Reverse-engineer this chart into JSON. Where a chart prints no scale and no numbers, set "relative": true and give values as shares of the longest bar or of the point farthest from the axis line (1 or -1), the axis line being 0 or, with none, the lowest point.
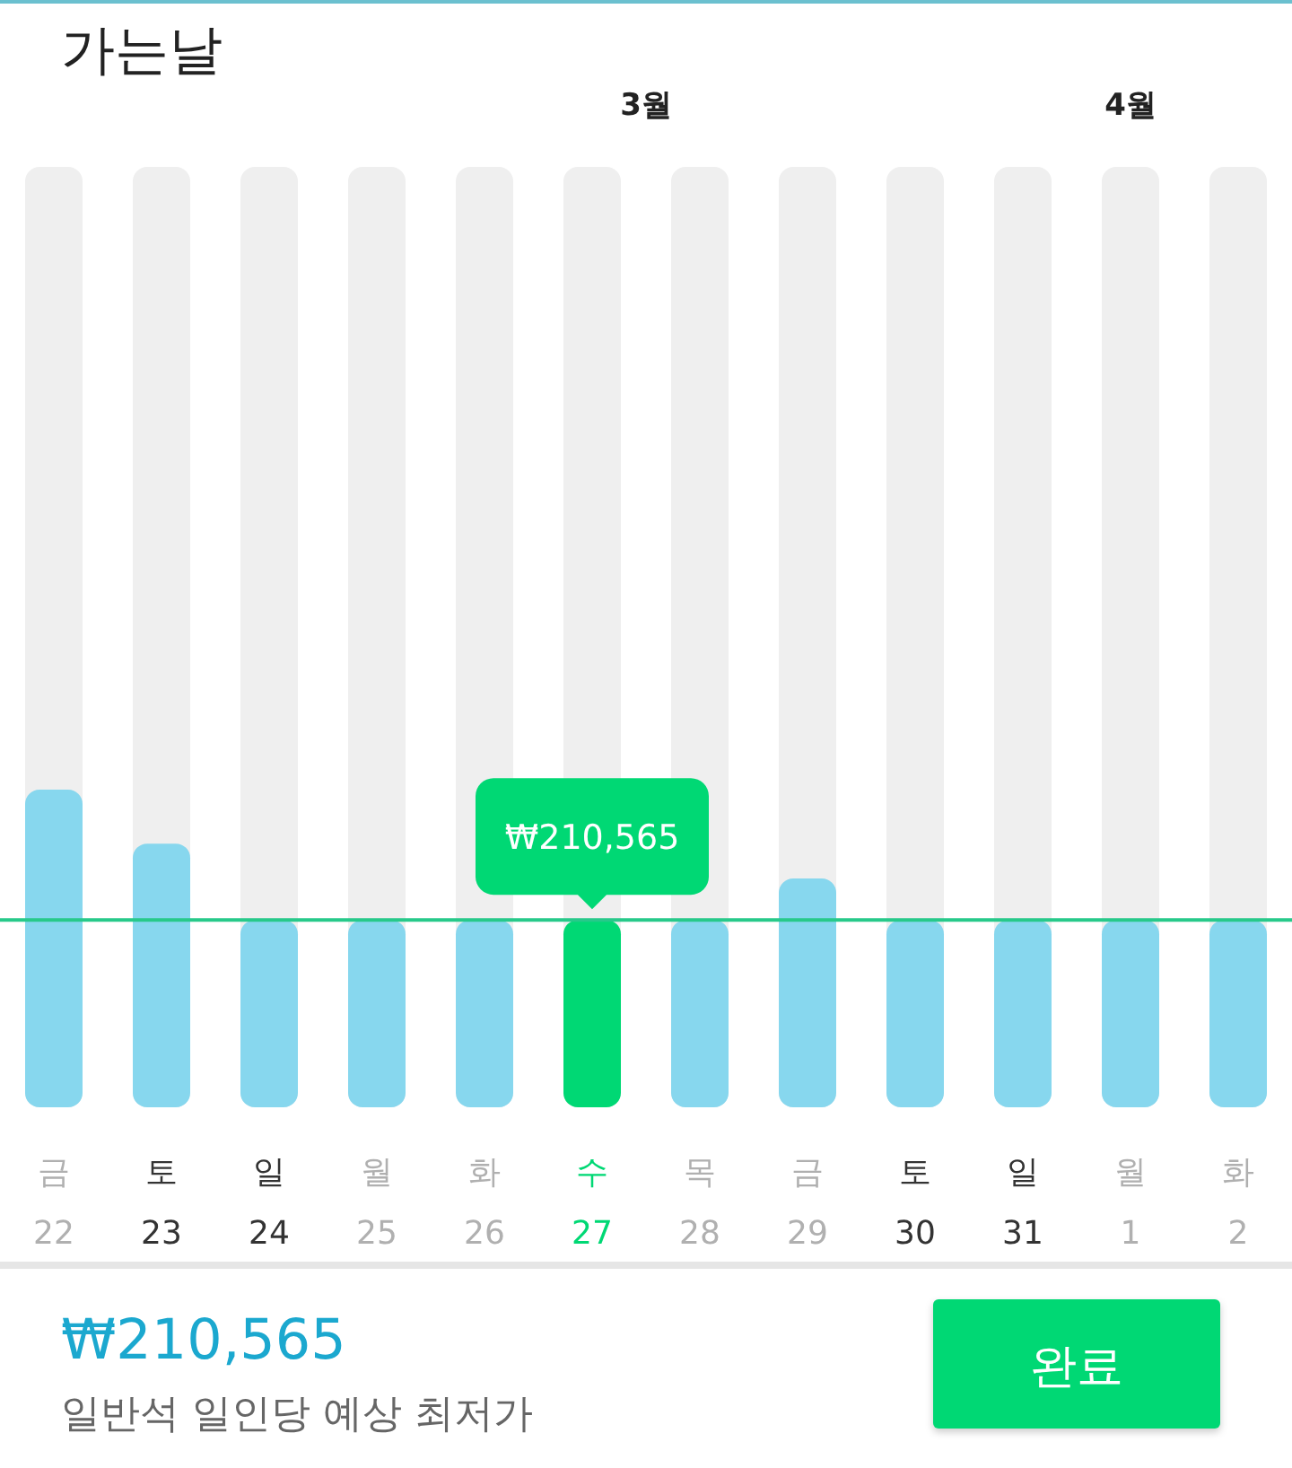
{
  "chart_data": {
    "type": "bar",
    "title": "가는날",
    "categories": [
      "금\n22",
      "토\n23",
      "일\n24",
      "월\n25",
      "화\n26",
      "수\n27",
      "목\n28",
      "금\n29",
      "토\n30",
      "일\n31",
      "월\n1",
      "화\n2"
    ],
    "values": [
      1,
      0.83,
      0.59,
      0.59,
      0.59,
      0.59,
      0.59,
      0.72,
      0.59,
      0.59,
      0.59,
      0.59
    ],
    "colors": [
      "#87d7ee",
      "#87d7ee",
      "#87d7ee",
      "#87d7ee",
      "#87d7ee",
      "#00d874",
      "#87d7ee",
      "#87d7ee",
      "#87d7ee",
      "#87d7ee",
      "#87d7ee",
      "#87d7ee"
    ],
    "relative": true,
    "ref_lines": [
      {
        "axis": "y",
        "value": 0.59,
        "color": "#27c98a"
      }
    ],
    "annotations": [
      "3월",
      "4월",
      {
        "text": "₩210,565",
        "x": "수\n27",
        "y": 0.59
      },
      "₩210,565",
      "일반석 일인당 예상 최저가",
      "완료"
    ]
  }
}
